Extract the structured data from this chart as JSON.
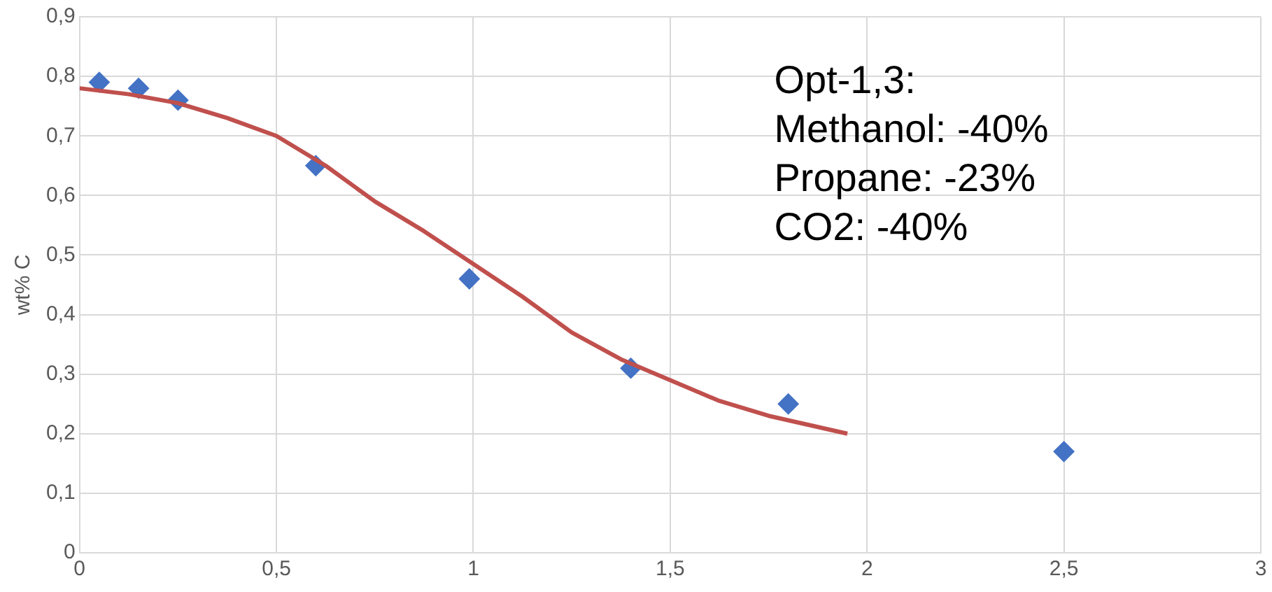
{
  "chart_data": {
    "type": "scatter",
    "ylabel": "wt% C",
    "xlim": [
      0,
      3
    ],
    "xticks": [
      0,
      {
        "value": 0.5,
        "label": "0,5"
      },
      1,
      {
        "value": 1.5,
        "label": "1,5"
      },
      2,
      {
        "value": 2.5,
        "label": "2,5"
      },
      3
    ],
    "ylim": [
      0,
      0.9
    ],
    "yticks": [
      0,
      {
        "value": 0.1,
        "label": "0,1"
      },
      {
        "value": 0.2,
        "label": "0,2"
      },
      {
        "value": 0.3,
        "label": "0,3"
      },
      {
        "value": 0.4,
        "label": "0,4"
      },
      {
        "value": 0.5,
        "label": "0,5"
      },
      {
        "value": 0.6,
        "label": "0,6"
      },
      {
        "value": 0.7,
        "label": "0,7"
      },
      {
        "value": 0.8,
        "label": "0,8"
      },
      {
        "value": 0.9,
        "label": "0,9"
      }
    ],
    "grid": true,
    "legend": false,
    "series": [
      {
        "type": "scatter",
        "color": "#4472c4",
        "marker": "diamond",
        "x": [
          0.05,
          0.15,
          0.25,
          0.6,
          0.99,
          1.4,
          1.8,
          2.5
        ],
        "values": [
          0.79,
          0.78,
          0.76,
          0.65,
          0.46,
          0.31,
          0.25,
          0.17
        ]
      },
      {
        "type": "line",
        "color": "#c0504d",
        "marker": "none",
        "x": [
          0,
          0.125,
          0.25,
          0.375,
          0.5,
          0.625,
          0.75,
          0.875,
          1.0,
          1.125,
          1.25,
          1.375,
          1.5,
          1.625,
          1.75,
          1.85,
          1.95
        ],
        "values": [
          0.78,
          0.77,
          0.755,
          0.73,
          0.7,
          0.65,
          0.59,
          0.54,
          0.485,
          0.43,
          0.37,
          0.325,
          0.29,
          0.255,
          0.23,
          0.215,
          0.2
        ]
      }
    ],
    "annotations": [
      "Opt-1,3:",
      "Methanol: -40%",
      "Propane: -23%",
      "CO2: -40%"
    ]
  }
}
